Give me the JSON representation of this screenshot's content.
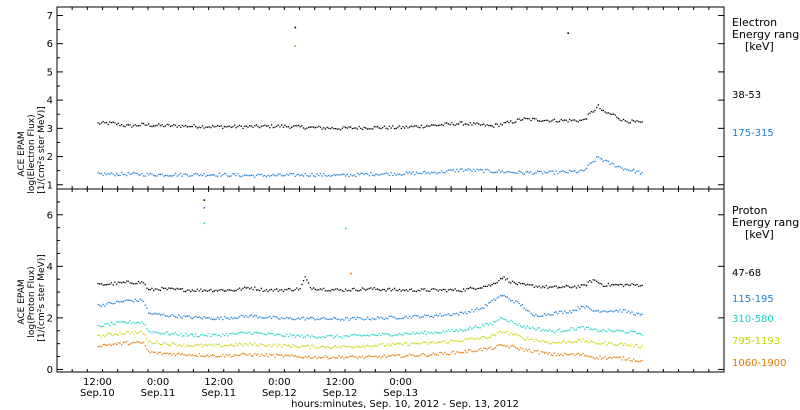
{
  "chart_data": [
    {
      "type": "scatter",
      "panel": "electron",
      "ylabel_lines": [
        "ACE EPAM",
        "log(Electron Flux)",
        "[1/(cm²s ster MeV)]"
      ],
      "ylim": [
        0.85,
        7.3
      ],
      "yticks": [
        1,
        2,
        3,
        4,
        5,
        6,
        7
      ],
      "legend_title": [
        "Electron",
        "Energy range",
        "[keV]"
      ],
      "series": [
        {
          "name": "38-53",
          "color": "#000000",
          "points": [
            [
              0,
              3.2
            ],
            [
              3,
              3.2
            ],
            [
              6,
              3.1
            ],
            [
              9,
              3.15
            ],
            [
              12,
              3.12
            ],
            [
              18,
              3.1
            ],
            [
              24,
              3.08
            ],
            [
              30,
              3.08
            ],
            [
              36,
              3.1
            ],
            [
              42,
              3.05
            ],
            [
              48,
              3.02
            ],
            [
              54,
              3.05
            ],
            [
              60,
              3.05
            ],
            [
              66,
              3.12
            ],
            [
              72,
              3.2
            ],
            [
              78,
              3.1
            ],
            [
              82,
              3.25
            ],
            [
              84,
              3.35
            ],
            [
              90,
              3.3
            ],
            [
              96,
              3.3
            ],
            [
              99,
              3.8
            ],
            [
              100,
              3.6
            ],
            [
              102,
              3.5
            ],
            [
              104,
              3.3
            ],
            [
              108,
              3.2
            ]
          ]
        },
        {
          "name": "175-315",
          "color": "#1a7fd6",
          "points": [
            [
              0,
              1.4
            ],
            [
              3,
              1.4
            ],
            [
              6,
              1.4
            ],
            [
              12,
              1.38
            ],
            [
              18,
              1.38
            ],
            [
              24,
              1.38
            ],
            [
              30,
              1.35
            ],
            [
              36,
              1.35
            ],
            [
              42,
              1.38
            ],
            [
              48,
              1.35
            ],
            [
              54,
              1.4
            ],
            [
              60,
              1.42
            ],
            [
              66,
              1.45
            ],
            [
              72,
              1.55
            ],
            [
              78,
              1.5
            ],
            [
              84,
              1.45
            ],
            [
              90,
              1.45
            ],
            [
              96,
              1.5
            ],
            [
              99,
              2.0
            ],
            [
              101,
              1.8
            ],
            [
              104,
              1.6
            ],
            [
              108,
              1.42
            ]
          ]
        }
      ],
      "outliers": [
        [
          39,
          6.6,
          "#000000"
        ],
        [
          39,
          5.95,
          "#e07b00"
        ],
        [
          93,
          6.4,
          "#000000"
        ]
      ]
    },
    {
      "type": "scatter",
      "panel": "proton",
      "ylabel_lines": [
        "ACE EPAM",
        "log(Proton Flux)",
        "[1/(cm²s ster MeV)]"
      ],
      "ylim": [
        -0.1,
        7.0
      ],
      "yticks": [
        0,
        2,
        4,
        6
      ],
      "legend_title": [
        "Proton",
        "Energy range",
        "[keV]"
      ],
      "series": [
        {
          "name": "47-68",
          "color": "#000000",
          "points": [
            [
              0,
              3.3
            ],
            [
              3,
              3.35
            ],
            [
              6,
              3.4
            ],
            [
              9,
              3.4
            ],
            [
              10,
              3.1
            ],
            [
              12,
              3.15
            ],
            [
              18,
              3.1
            ],
            [
              24,
              3.1
            ],
            [
              27,
              3.1
            ],
            [
              30,
              3.2
            ],
            [
              33,
              3.1
            ],
            [
              36,
              3.1
            ],
            [
              40,
              3.15
            ],
            [
              41,
              3.6
            ],
            [
              42,
              3.2
            ],
            [
              44,
              3.15
            ],
            [
              48,
              3.1
            ],
            [
              54,
              3.15
            ],
            [
              60,
              3.1
            ],
            [
              66,
              3.1
            ],
            [
              72,
              3.1
            ],
            [
              78,
              3.3
            ],
            [
              80,
              3.6
            ],
            [
              82,
              3.4
            ],
            [
              84,
              3.3
            ],
            [
              90,
              3.2
            ],
            [
              96,
              3.25
            ],
            [
              98,
              3.5
            ],
            [
              100,
              3.3
            ],
            [
              104,
              3.3
            ],
            [
              108,
              3.3
            ]
          ]
        },
        {
          "name": "115-195",
          "color": "#1a7fd6",
          "points": [
            [
              0,
              2.5
            ],
            [
              3,
              2.6
            ],
            [
              6,
              2.7
            ],
            [
              9,
              2.7
            ],
            [
              10,
              2.2
            ],
            [
              12,
              2.15
            ],
            [
              18,
              2.05
            ],
            [
              24,
              2.0
            ],
            [
              30,
              2.1
            ],
            [
              36,
              2.0
            ],
            [
              42,
              2.0
            ],
            [
              48,
              1.98
            ],
            [
              54,
              2.0
            ],
            [
              60,
              2.05
            ],
            [
              66,
              2.1
            ],
            [
              72,
              2.2
            ],
            [
              76,
              2.4
            ],
            [
              79,
              2.8
            ],
            [
              80,
              2.9
            ],
            [
              82,
              2.7
            ],
            [
              84,
              2.5
            ],
            [
              86,
              2.1
            ],
            [
              90,
              2.2
            ],
            [
              94,
              2.3
            ],
            [
              96,
              2.5
            ],
            [
              98,
              2.3
            ],
            [
              100,
              2.3
            ],
            [
              104,
              2.3
            ],
            [
              108,
              2.1
            ]
          ]
        },
        {
          "name": "310-580",
          "color": "#19d1c8",
          "points": [
            [
              0,
              1.7
            ],
            [
              3,
              1.8
            ],
            [
              6,
              1.85
            ],
            [
              9,
              1.85
            ],
            [
              10,
              1.5
            ],
            [
              12,
              1.45
            ],
            [
              18,
              1.35
            ],
            [
              24,
              1.35
            ],
            [
              30,
              1.45
            ],
            [
              36,
              1.35
            ],
            [
              42,
              1.3
            ],
            [
              48,
              1.3
            ],
            [
              54,
              1.35
            ],
            [
              60,
              1.4
            ],
            [
              66,
              1.45
            ],
            [
              72,
              1.55
            ],
            [
              78,
              1.8
            ],
            [
              80,
              2.05
            ],
            [
              82,
              1.85
            ],
            [
              84,
              1.7
            ],
            [
              90,
              1.5
            ],
            [
              96,
              1.65
            ],
            [
              98,
              1.55
            ],
            [
              104,
              1.5
            ],
            [
              108,
              1.4
            ]
          ]
        },
        {
          "name": "795-1193",
          "color": "#c8d400",
          "points": [
            [
              0,
              1.3
            ],
            [
              3,
              1.4
            ],
            [
              6,
              1.45
            ],
            [
              9,
              1.45
            ],
            [
              10,
              1.1
            ],
            [
              12,
              1.05
            ],
            [
              18,
              0.95
            ],
            [
              24,
              0.95
            ],
            [
              30,
              1.0
            ],
            [
              36,
              0.95
            ],
            [
              42,
              0.9
            ],
            [
              48,
              0.9
            ],
            [
              54,
              0.95
            ],
            [
              60,
              1.0
            ],
            [
              66,
              1.05
            ],
            [
              72,
              1.15
            ],
            [
              78,
              1.3
            ],
            [
              80,
              1.5
            ],
            [
              82,
              1.4
            ],
            [
              84,
              1.25
            ],
            [
              90,
              1.05
            ],
            [
              96,
              1.15
            ],
            [
              98,
              1.05
            ],
            [
              104,
              1.0
            ],
            [
              108,
              0.9
            ]
          ]
        },
        {
          "name": "1060-1900",
          "color": "#e07b00",
          "points": [
            [
              0,
              0.95
            ],
            [
              3,
              1.0
            ],
            [
              6,
              1.05
            ],
            [
              9,
              1.05
            ],
            [
              10,
              0.7
            ],
            [
              12,
              0.65
            ],
            [
              18,
              0.6
            ],
            [
              24,
              0.55
            ],
            [
              30,
              0.6
            ],
            [
              36,
              0.55
            ],
            [
              42,
              0.5
            ],
            [
              48,
              0.5
            ],
            [
              54,
              0.5
            ],
            [
              60,
              0.55
            ],
            [
              66,
              0.6
            ],
            [
              72,
              0.7
            ],
            [
              78,
              0.85
            ],
            [
              80,
              0.95
            ],
            [
              82,
              0.9
            ],
            [
              84,
              0.8
            ],
            [
              90,
              0.6
            ],
            [
              96,
              0.6
            ],
            [
              98,
              0.5
            ],
            [
              104,
              0.45
            ],
            [
              108,
              0.35
            ]
          ]
        }
      ],
      "outliers": [
        [
          21,
          6.6,
          "#000000"
        ],
        [
          21,
          6.3,
          "#1a7fd6"
        ],
        [
          21,
          5.7,
          "#19d1c8"
        ],
        [
          49,
          5.5,
          "#19d1c8"
        ],
        [
          50,
          3.75,
          "#e07b00"
        ]
      ]
    }
  ],
  "x_axis": {
    "xlim": [
      -8,
      124
    ],
    "ticks": [
      {
        "hour": 0,
        "time": "12:00",
        "date": "Sep.10"
      },
      {
        "hour": 12,
        "time": "0:00",
        "date": "Sep.11"
      },
      {
        "hour": 24,
        "time": "12:00",
        "date": "Sep.11"
      },
      {
        "hour": 36,
        "time": "0:00",
        "date": "Sep.12"
      },
      {
        "hour": 48,
        "time": "12:00",
        "date": "Sep.12"
      },
      {
        "hour": 60,
        "time": "0:00",
        "date": "Sep.13"
      }
    ],
    "minor_step_hours": 3,
    "xlabel": "hours:minutes, Sep. 10, 2012 - Sep. 13, 2012"
  }
}
